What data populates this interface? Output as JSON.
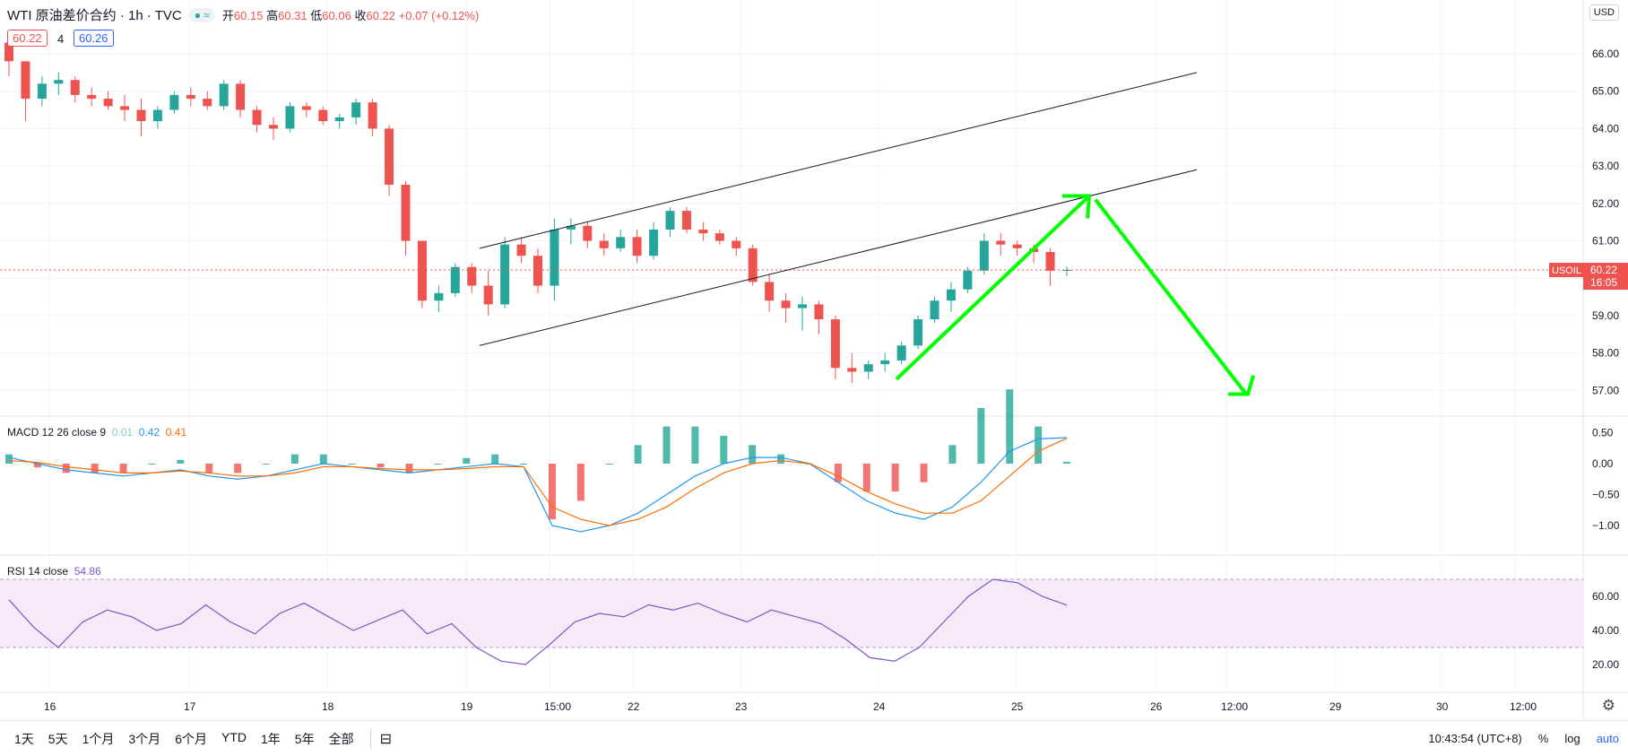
{
  "header": {
    "symbol": "WTI 原油差价合约 · 1h · TVC",
    "open_label": "开",
    "open": "60.15",
    "high_label": "高",
    "high": "60.31",
    "low_label": "低",
    "low": "60.06",
    "close_label": "收",
    "close": "60.22",
    "change": "+0.07 (+0.12%)",
    "bid": "60.22",
    "spread": "4",
    "ask": "60.26"
  },
  "currency": "USD",
  "last_price": {
    "ticker": "USOIL",
    "price": "60.22",
    "countdown": "16:05"
  },
  "macd_label": {
    "name": "MACD 12 26 close 9",
    "hist": "0.01",
    "macd": "0.42",
    "signal": "0.41"
  },
  "rsi_label": {
    "name": "RSI 14 close",
    "value": "54.86"
  },
  "time_axis": [
    "16",
    "17",
    "18",
    "19",
    "15:00",
    "22",
    "23",
    "24",
    "25",
    "26",
    "12:00",
    "29",
    "30",
    "12:00"
  ],
  "price_axis": [
    "66.00",
    "65.00",
    "64.00",
    "63.00",
    "62.00",
    "61.00",
    "60.00",
    "59.00",
    "58.00",
    "57.00"
  ],
  "macd_axis": [
    "0.50",
    "0.00",
    "−0.50",
    "−1.00"
  ],
  "rsi_axis": [
    "60.00",
    "40.00",
    "20.00"
  ],
  "ranges": [
    "1天",
    "5天",
    "1个月",
    "3个月",
    "6个月",
    "YTD",
    "1年",
    "5年",
    "全部"
  ],
  "clock": "10:43:54 (UTC+8)",
  "scale_buttons": [
    "%",
    "log",
    "auto"
  ],
  "colors": {
    "up": "#26a69a",
    "down": "#ef5350",
    "macd": "#2196f3",
    "signal": "#ff6d00",
    "rsi": "#7e57c2",
    "arrow": "#00ff00"
  },
  "chart_data": [
    {
      "type": "candlestick",
      "title": "WTI 原油差价合约 · 1h · TVC",
      "ylim": [
        56.5,
        66.5
      ],
      "y_ticks": [
        57,
        58,
        59,
        60,
        61,
        62,
        63,
        64,
        65,
        66
      ],
      "x_ticks": [
        "16",
        "17",
        "18",
        "19",
        "15:00",
        "22",
        "23",
        "24",
        "25",
        "26",
        "12:00",
        "29",
        "30",
        "12:00"
      ],
      "candles_approx": [
        [
          66.3,
          66.2,
          65.4,
          65.8
        ],
        [
          65.8,
          65.5,
          64.2,
          64.8
        ],
        [
          64.8,
          65.4,
          64.6,
          65.2
        ],
        [
          65.2,
          65.5,
          64.9,
          65.3
        ],
        [
          65.3,
          65.4,
          64.7,
          64.9
        ],
        [
          64.9,
          65.1,
          64.6,
          64.8
        ],
        [
          64.8,
          65.0,
          64.5,
          64.6
        ],
        [
          64.6,
          64.9,
          64.2,
          64.5
        ],
        [
          64.5,
          64.8,
          63.8,
          64.2
        ],
        [
          64.2,
          64.6,
          64.0,
          64.5
        ],
        [
          64.5,
          65.0,
          64.4,
          64.9
        ],
        [
          64.9,
          65.1,
          64.6,
          64.8
        ],
        [
          64.8,
          65.0,
          64.5,
          64.6
        ],
        [
          64.6,
          65.3,
          64.5,
          65.2
        ],
        [
          65.2,
          65.3,
          64.3,
          64.5
        ],
        [
          64.5,
          64.6,
          63.9,
          64.1
        ],
        [
          64.1,
          64.3,
          63.7,
          64.0
        ],
        [
          64.0,
          64.7,
          63.9,
          64.6
        ],
        [
          64.6,
          64.7,
          64.3,
          64.5
        ],
        [
          64.5,
          64.6,
          64.1,
          64.2
        ],
        [
          64.2,
          64.4,
          64.0,
          64.3
        ],
        [
          64.3,
          64.8,
          64.1,
          64.7
        ],
        [
          64.7,
          64.8,
          63.8,
          64.0
        ],
        [
          64.0,
          64.1,
          62.2,
          62.5
        ],
        [
          62.5,
          62.6,
          60.6,
          61.0
        ],
        [
          61.0,
          61.0,
          59.2,
          59.4
        ],
        [
          59.4,
          59.8,
          59.1,
          59.6
        ],
        [
          59.6,
          60.4,
          59.5,
          60.3
        ],
        [
          60.3,
          60.4,
          59.6,
          59.8
        ],
        [
          59.8,
          60.2,
          59.0,
          59.3
        ],
        [
          59.3,
          61.1,
          59.2,
          60.9
        ],
        [
          60.9,
          61.1,
          60.4,
          60.6
        ],
        [
          60.6,
          60.8,
          59.6,
          59.8
        ],
        [
          59.8,
          61.6,
          59.4,
          61.3
        ],
        [
          61.3,
          61.6,
          60.9,
          61.4
        ],
        [
          61.4,
          61.5,
          60.8,
          61.0
        ],
        [
          61.0,
          61.2,
          60.6,
          60.8
        ],
        [
          60.8,
          61.3,
          60.7,
          61.1
        ],
        [
          61.1,
          61.3,
          60.4,
          60.6
        ],
        [
          60.6,
          61.5,
          60.5,
          61.3
        ],
        [
          61.3,
          61.9,
          61.1,
          61.8
        ],
        [
          61.8,
          61.9,
          61.2,
          61.3
        ],
        [
          61.3,
          61.5,
          61.0,
          61.2
        ],
        [
          61.2,
          61.3,
          60.9,
          61.0
        ],
        [
          61.0,
          61.1,
          60.6,
          60.8
        ],
        [
          60.8,
          60.9,
          59.8,
          59.9
        ],
        [
          59.9,
          60.1,
          59.1,
          59.4
        ],
        [
          59.4,
          59.6,
          58.8,
          59.2
        ],
        [
          59.2,
          59.5,
          58.6,
          59.3
        ],
        [
          59.3,
          59.4,
          58.5,
          58.9
        ],
        [
          58.9,
          59.0,
          57.3,
          57.6
        ],
        [
          57.6,
          58.0,
          57.2,
          57.5
        ],
        [
          57.5,
          57.8,
          57.3,
          57.7
        ],
        [
          57.7,
          58.0,
          57.5,
          57.8
        ],
        [
          57.8,
          58.3,
          57.7,
          58.2
        ],
        [
          58.2,
          59.0,
          58.1,
          58.9
        ],
        [
          58.9,
          59.5,
          58.8,
          59.4
        ],
        [
          59.4,
          59.9,
          59.1,
          59.7
        ],
        [
          59.7,
          60.3,
          59.6,
          60.2
        ],
        [
          60.2,
          61.2,
          60.1,
          61.0
        ],
        [
          61.0,
          61.2,
          60.6,
          60.9
        ],
        [
          60.9,
          61.0,
          60.6,
          60.8
        ],
        [
          60.8,
          60.9,
          60.4,
          60.7
        ],
        [
          60.7,
          60.8,
          59.8,
          60.2
        ],
        [
          60.2,
          60.31,
          60.06,
          60.22
        ]
      ],
      "annotations": {
        "channel": "two parallel upward-sloping trend lines",
        "arrows": [
          "up arrow from 57.3 to 62.2",
          "down arrow from 62.2 to 56.9"
        ]
      }
    },
    {
      "type": "line",
      "title": "MACD 12 26 close 9",
      "ylim": [
        -1.3,
        0.65
      ],
      "series": [
        {
          "name": "MACD",
          "values": [
            0.1,
            0.0,
            -0.1,
            -0.15,
            -0.2,
            -0.15,
            -0.1,
            -0.2,
            -0.25,
            -0.2,
            -0.1,
            0.0,
            -0.05,
            -0.1,
            -0.15,
            -0.1,
            -0.05,
            0.0,
            -0.05,
            -1.0,
            -1.1,
            -1.0,
            -0.8,
            -0.5,
            -0.2,
            0.0,
            0.1,
            0.1,
            0.0,
            -0.3,
            -0.6,
            -0.8,
            -0.9,
            -0.7,
            -0.3,
            0.2,
            0.4,
            0.42
          ]
        },
        {
          "name": "Signal",
          "values": [
            0.05,
            0.02,
            -0.05,
            -0.1,
            -0.15,
            -0.15,
            -0.12,
            -0.15,
            -0.2,
            -0.2,
            -0.15,
            -0.05,
            -0.05,
            -0.08,
            -0.1,
            -0.1,
            -0.08,
            -0.05,
            -0.05,
            -0.7,
            -0.9,
            -1.0,
            -0.9,
            -0.7,
            -0.4,
            -0.15,
            0.0,
            0.05,
            0.0,
            -0.2,
            -0.45,
            -0.65,
            -0.8,
            -0.8,
            -0.6,
            -0.2,
            0.2,
            0.41
          ]
        }
      ]
    },
    {
      "type": "line",
      "title": "RSI 14 close",
      "ylim": [
        15,
        75
      ],
      "bands": [
        30,
        70
      ],
      "series": [
        {
          "name": "RSI",
          "values": [
            58,
            42,
            30,
            45,
            52,
            48,
            40,
            44,
            55,
            45,
            38,
            50,
            56,
            48,
            40,
            46,
            52,
            38,
            44,
            30,
            22,
            20,
            32,
            45,
            50,
            48,
            55,
            52,
            56,
            50,
            45,
            52,
            48,
            44,
            35,
            24,
            22,
            30,
            45,
            60,
            70,
            68,
            60,
            54.86
          ]
        }
      ]
    }
  ]
}
